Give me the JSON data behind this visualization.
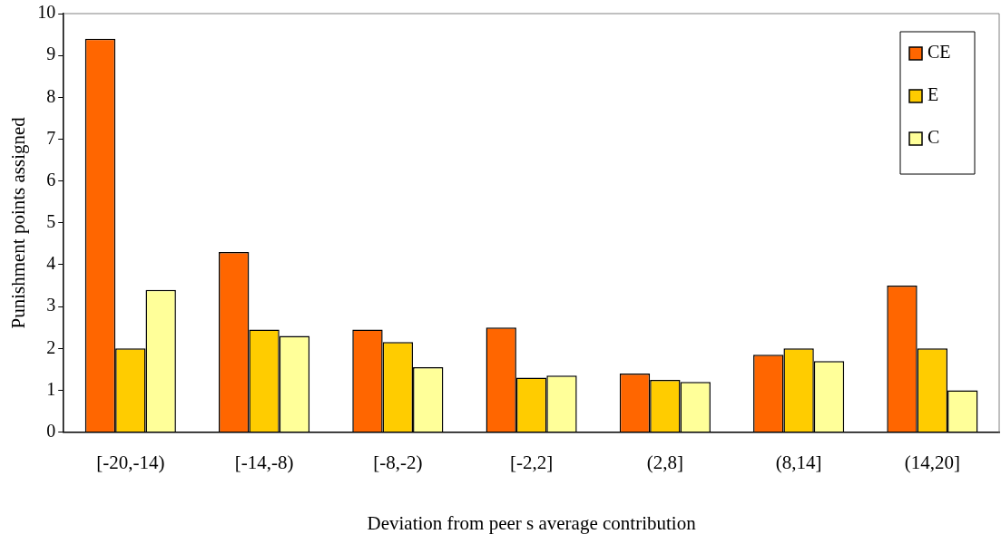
{
  "chart_data": {
    "type": "bar",
    "xlabel": "Deviation from peer s average contribution",
    "ylabel": "Punishment points assigned",
    "categories": [
      "[-20,-14)",
      "[-14,-8)",
      "[-8,-2)",
      "[-2,2]",
      "(2,8]",
      "(8,14]",
      "(14,20]"
    ],
    "series": [
      {
        "name": "CE",
        "color": "#ff6600",
        "values": [
          9.4,
          4.3,
          2.45,
          2.5,
          1.4,
          1.85,
          3.5
        ]
      },
      {
        "name": "E",
        "color": "#ffcc00",
        "values": [
          2.0,
          2.45,
          2.15,
          1.3,
          1.25,
          2.0,
          2.0
        ]
      },
      {
        "name": "C",
        "color": "#ffff99",
        "values": [
          3.4,
          2.3,
          1.55,
          1.35,
          1.2,
          1.7,
          1.0
        ]
      }
    ],
    "ylim": [
      0,
      10
    ],
    "yticks": [
      0,
      1,
      2,
      3,
      4,
      5,
      6,
      7,
      8,
      9,
      10
    ],
    "grid": false,
    "legend": "top right"
  }
}
